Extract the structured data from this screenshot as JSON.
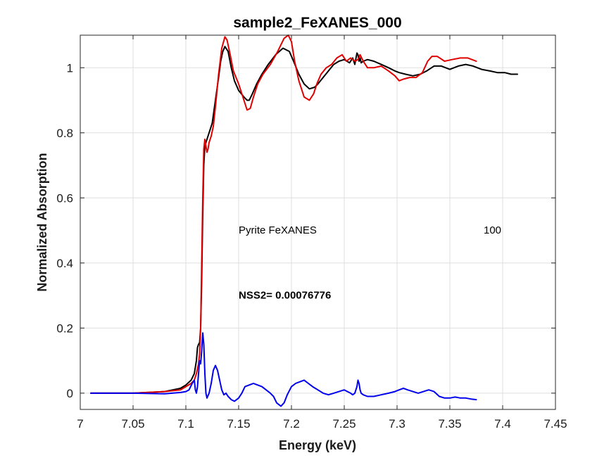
{
  "chart_data": {
    "type": "line",
    "title": "sample2_FeXANES_000",
    "xlabel": "Energy (keV)",
    "ylabel": "Normalized Absorption",
    "xlim": [
      7.0,
      7.45
    ],
    "ylim": [
      -0.05,
      1.1
    ],
    "xticks": [
      7.0,
      7.05,
      7.1,
      7.15,
      7.2,
      7.25,
      7.3,
      7.35,
      7.4,
      7.45
    ],
    "xtick_labels": [
      "7",
      "7.05",
      "7.1",
      "7.15",
      "7.2",
      "7.25",
      "7.3",
      "7.35",
      "7.4",
      "7.45"
    ],
    "yticks": [
      0,
      0.2,
      0.4,
      0.6,
      0.8,
      1.0
    ],
    "ytick_labels": [
      "0",
      "0.2",
      "0.4",
      "0.6",
      "0.8",
      "1"
    ],
    "grid": true,
    "series": [
      {
        "color": "#000000",
        "x": [
          7.01,
          7.05,
          7.08,
          7.095,
          7.1,
          7.105,
          7.108,
          7.11,
          7.111,
          7.112,
          7.113,
          7.114,
          7.115,
          7.116,
          7.117,
          7.118,
          7.119,
          7.12,
          7.122,
          7.125,
          7.128,
          7.131,
          7.133,
          7.135,
          7.137,
          7.14,
          7.143,
          7.146,
          7.15,
          7.155,
          7.158,
          7.16,
          7.163,
          7.167,
          7.172,
          7.178,
          7.185,
          7.192,
          7.198,
          7.202,
          7.207,
          7.212,
          7.217,
          7.222,
          7.225,
          7.23,
          7.235,
          7.24,
          7.245,
          7.25,
          7.255,
          7.258,
          7.26,
          7.262,
          7.263,
          7.264,
          7.265,
          7.266,
          7.268,
          7.272,
          7.278,
          7.285,
          7.292,
          7.298,
          7.302,
          7.308,
          7.315,
          7.322,
          7.328,
          7.335,
          7.342,
          7.35,
          7.358,
          7.365,
          7.372,
          7.38,
          7.388,
          7.395,
          7.402,
          7.408,
          7.414
        ],
        "y": [
          0.0,
          0.0,
          0.005,
          0.015,
          0.025,
          0.04,
          0.06,
          0.1,
          0.14,
          0.15,
          0.155,
          0.2,
          0.35,
          0.55,
          0.7,
          0.76,
          0.77,
          0.78,
          0.8,
          0.83,
          0.9,
          0.97,
          1.02,
          1.05,
          1.065,
          1.05,
          1.0,
          0.96,
          0.93,
          0.91,
          0.9,
          0.9,
          0.92,
          0.95,
          0.98,
          1.01,
          1.04,
          1.06,
          1.05,
          1.02,
          0.98,
          0.95,
          0.935,
          0.94,
          0.95,
          0.97,
          0.99,
          1.01,
          1.02,
          1.025,
          1.015,
          1.03,
          1.01,
          1.045,
          1.04,
          1.02,
          1.03,
          1.015,
          1.02,
          1.025,
          1.02,
          1.01,
          1.0,
          0.99,
          0.985,
          0.98,
          0.975,
          0.98,
          0.99,
          1.005,
          1.005,
          0.995,
          1.005,
          1.01,
          1.005,
          0.995,
          0.99,
          0.985,
          0.985,
          0.98,
          0.98
        ]
      },
      {
        "color": "#e00000",
        "x": [
          7.01,
          7.05,
          7.08,
          7.095,
          7.1,
          7.105,
          7.108,
          7.11,
          7.112,
          7.113,
          7.114,
          7.115,
          7.116,
          7.117,
          7.118,
          7.119,
          7.12,
          7.121,
          7.122,
          7.124,
          7.126,
          7.128,
          7.131,
          7.134,
          7.137,
          7.139,
          7.142,
          7.145,
          7.15,
          7.155,
          7.158,
          7.161,
          7.164,
          7.168,
          7.173,
          7.18,
          7.187,
          7.193,
          7.197,
          7.2,
          7.203,
          7.207,
          7.212,
          7.217,
          7.221,
          7.224,
          7.228,
          7.233,
          7.238,
          7.243,
          7.248,
          7.252,
          7.256,
          7.26,
          7.263,
          7.265,
          7.268,
          7.272,
          7.278,
          7.285,
          7.292,
          7.298,
          7.302,
          7.306,
          7.312,
          7.318,
          7.324,
          7.329,
          7.333,
          7.338,
          7.345,
          7.352,
          7.36,
          7.367,
          7.375
        ],
        "y": [
          0.0,
          0.0,
          0.005,
          0.01,
          0.02,
          0.03,
          0.04,
          0.06,
          0.09,
          0.12,
          0.2,
          0.4,
          0.6,
          0.75,
          0.78,
          0.76,
          0.74,
          0.75,
          0.77,
          0.79,
          0.82,
          0.88,
          0.98,
          1.06,
          1.095,
          1.085,
          1.04,
          0.99,
          0.95,
          0.9,
          0.87,
          0.875,
          0.91,
          0.95,
          0.98,
          1.01,
          1.05,
          1.09,
          1.1,
          1.08,
          1.02,
          0.96,
          0.91,
          0.9,
          0.92,
          0.95,
          0.98,
          1.0,
          1.01,
          1.03,
          1.04,
          1.02,
          1.03,
          1.02,
          1.025,
          1.04,
          1.02,
          1.0,
          1.0,
          1.005,
          0.99,
          0.975,
          0.96,
          0.965,
          0.97,
          0.97,
          0.985,
          1.02,
          1.035,
          1.035,
          1.02,
          1.025,
          1.03,
          1.03,
          1.02
        ]
      },
      {
        "color": "#0000ee",
        "x": [
          7.01,
          7.05,
          7.08,
          7.095,
          7.1,
          7.103,
          7.106,
          7.108,
          7.109,
          7.11,
          7.111,
          7.112,
          7.113,
          7.114,
          7.115,
          7.116,
          7.117,
          7.118,
          7.119,
          7.12,
          7.122,
          7.124,
          7.126,
          7.128,
          7.13,
          7.132,
          7.134,
          7.136,
          7.138,
          7.14,
          7.143,
          7.146,
          7.15,
          7.153,
          7.156,
          7.16,
          7.164,
          7.168,
          7.172,
          7.176,
          7.18,
          7.183,
          7.186,
          7.19,
          7.193,
          7.196,
          7.2,
          7.204,
          7.208,
          7.212,
          7.216,
          7.22,
          7.225,
          7.23,
          7.235,
          7.24,
          7.245,
          7.25,
          7.253,
          7.256,
          7.258,
          7.26,
          7.262,
          7.263,
          7.264,
          7.265,
          7.266,
          7.268,
          7.272,
          7.278,
          7.285,
          7.292,
          7.298,
          7.302,
          7.306,
          7.31,
          7.315,
          7.32,
          7.325,
          7.33,
          7.335,
          7.34,
          7.345,
          7.35,
          7.355,
          7.36,
          7.365,
          7.37,
          7.375
        ],
        "y": [
          0.0,
          0.0,
          -0.002,
          0.002,
          0.005,
          0.01,
          0.03,
          0.04,
          0.01,
          0.0,
          0.02,
          0.06,
          0.1,
          0.09,
          0.13,
          0.185,
          0.15,
          0.06,
          0.0,
          -0.015,
          0.0,
          0.03,
          0.07,
          0.085,
          0.07,
          0.04,
          0.01,
          -0.005,
          0.0,
          -0.01,
          -0.02,
          -0.025,
          -0.015,
          0.0,
          0.02,
          0.025,
          0.03,
          0.025,
          0.02,
          0.01,
          0.0,
          -0.01,
          -0.03,
          -0.04,
          -0.03,
          -0.005,
          0.02,
          0.03,
          0.035,
          0.04,
          0.03,
          0.02,
          0.01,
          0.0,
          -0.005,
          0.0,
          0.005,
          0.01,
          0.005,
          0.0,
          -0.005,
          0.0,
          0.02,
          0.04,
          0.03,
          0.01,
          0.0,
          -0.005,
          -0.01,
          -0.01,
          -0.005,
          0.0,
          0.005,
          0.01,
          0.015,
          0.01,
          0.005,
          0.0,
          0.005,
          0.01,
          0.005,
          -0.01,
          -0.015,
          -0.015,
          -0.012,
          -0.015,
          -0.015,
          -0.018,
          -0.02
        ]
      }
    ],
    "annotations": [
      {
        "text": "Pyrite FeXANES",
        "x": 7.15,
        "y": 0.49,
        "bold": false
      },
      {
        "text": "100",
        "x": 7.382,
        "y": 0.49,
        "bold": false
      },
      {
        "text": "NSS2= 0.00076776",
        "x": 7.15,
        "y": 0.29,
        "bold": true
      }
    ]
  }
}
